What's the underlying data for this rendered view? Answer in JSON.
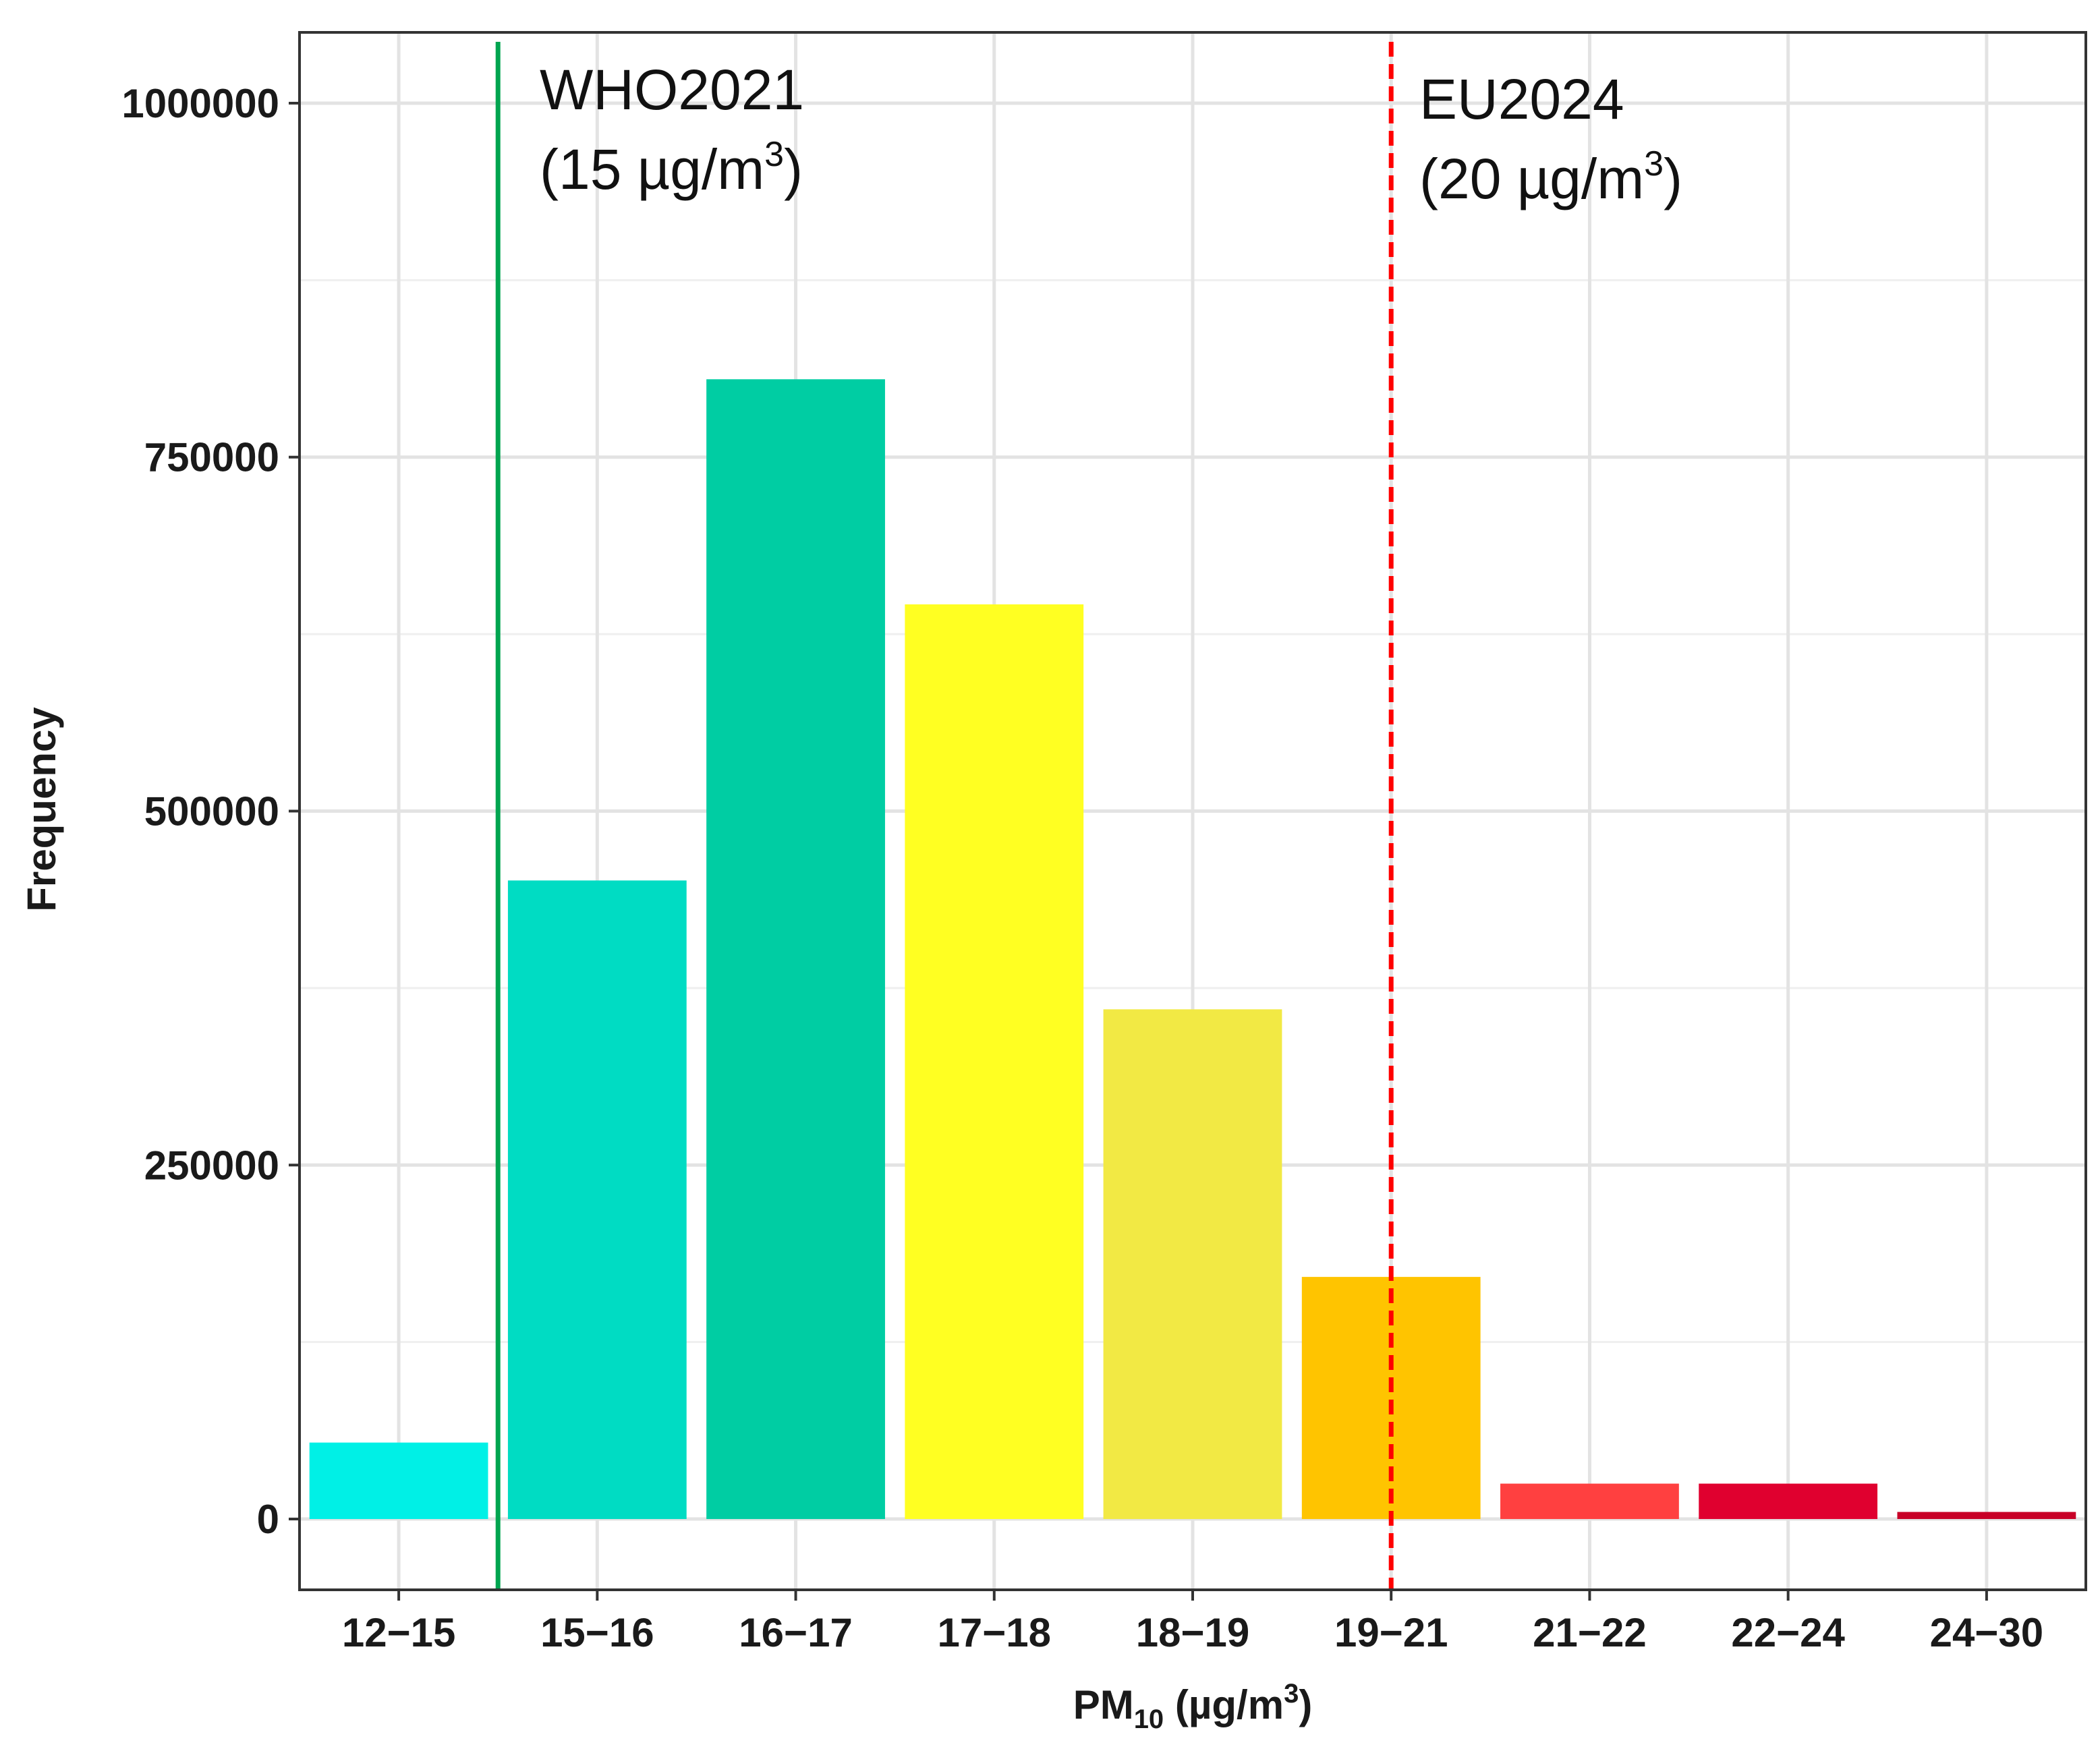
{
  "chart_data": {
    "type": "bar",
    "categories": [
      "12−15",
      "15−16",
      "16−17",
      "17−18",
      "18−19",
      "19−21",
      "21−22",
      "22−24",
      "24−30"
    ],
    "values": [
      54000,
      451000,
      805000,
      646000,
      360000,
      171000,
      25000,
      25000,
      5000
    ],
    "colors": [
      "#00f0e6",
      "#00dcc3",
      "#00cda3",
      "#ffff22",
      "#f2e944",
      "#ffc400",
      "#ff4040",
      "#e0002f",
      "#c80027"
    ],
    "xlabel": {
      "main": "PM",
      "sub": "10",
      "unit": " (µg/m",
      "sup": "3",
      "close": ")"
    },
    "ylabel": "Frequency",
    "ylim": [
      -50000,
      1050000
    ],
    "yticks": [
      0,
      250000,
      500000,
      750000,
      1000000
    ],
    "ytick_labels": [
      "0",
      "250000",
      "500000",
      "750000",
      "1000000"
    ],
    "grid": true,
    "reference_lines": [
      {
        "position_index": 0.5,
        "color": "#00a550",
        "style": "solid",
        "line1": "WHO2021",
        "line2": "(15 µg/m",
        "sup": "3",
        "close": ")"
      },
      {
        "position_index": 5,
        "color": "#ff0000",
        "style": "dashed",
        "line1": "EU2024",
        "line2": "(20 µg/m",
        "sup": "3",
        "close": ")"
      }
    ]
  }
}
